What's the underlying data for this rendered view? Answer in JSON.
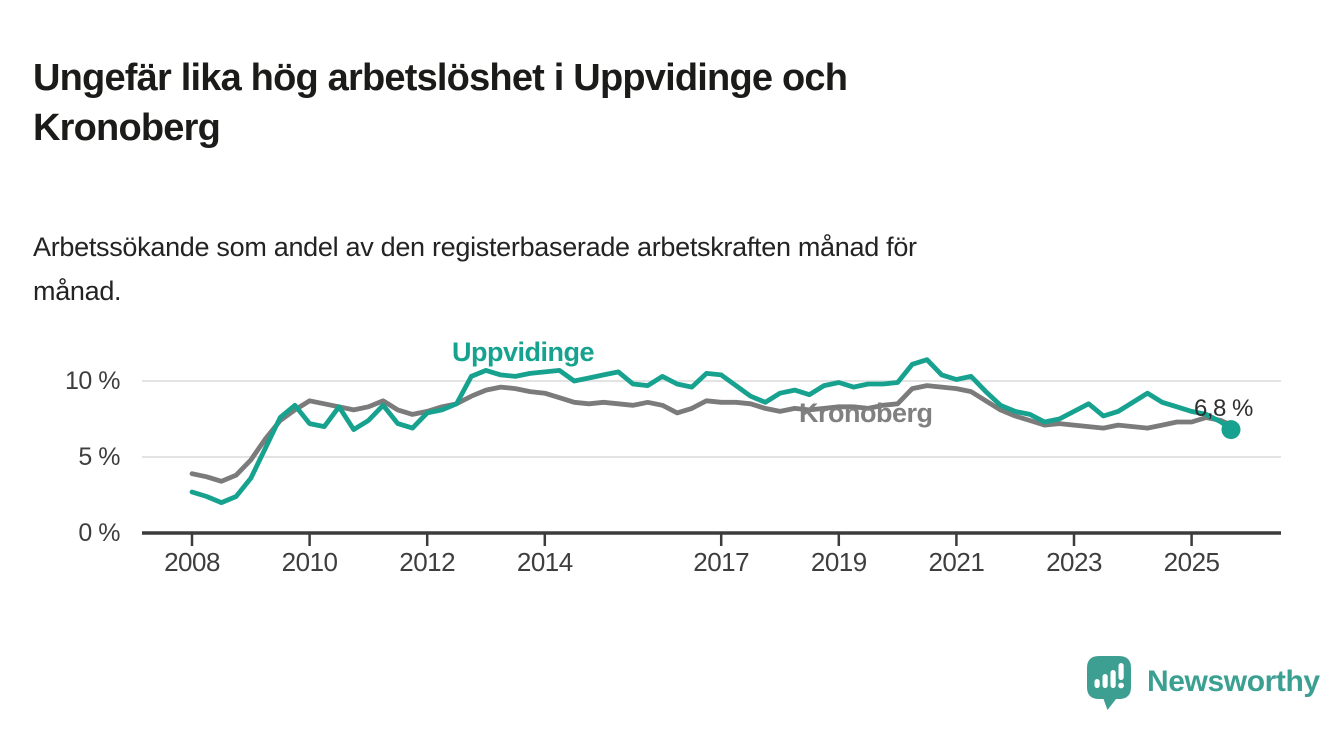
{
  "header": {
    "title": "Ungefär lika hög arbetslöshet i Uppvidinge och Kronoberg",
    "title_lines": [
      "Ungefär lika hög arbetslöshet i Uppvidinge och",
      "Kronoberg"
    ],
    "subtitle": "Arbetssökande som andel av den registerbaserade arbetskraften månad för månad.",
    "subtitle_lines": [
      "Arbetssökande som andel av den registerbaserade arbetskraften månad för",
      "månad."
    ]
  },
  "chart_data": {
    "type": "line",
    "unit": "%",
    "xlabel": "",
    "ylabel": "",
    "xlim": [
      2007.6,
      2026.2
    ],
    "ylim": [
      0,
      12.6
    ],
    "grid": "horizontal-y",
    "legend": "inline-labels",
    "x_ticks": [
      2008,
      2010,
      2012,
      2014,
      2017,
      2019,
      2021,
      2023,
      2025
    ],
    "y_ticks": [
      {
        "value": 10,
        "label": "10 %"
      },
      {
        "value": 5,
        "label": "5 %"
      },
      {
        "value": 0,
        "label": "0 %"
      }
    ],
    "x": [
      2008,
      2008.25,
      2008.5,
      2008.75,
      2009,
      2009.25,
      2009.5,
      2009.75,
      2010,
      2010.25,
      2010.5,
      2010.75,
      2011,
      2011.25,
      2011.5,
      2011.75,
      2012,
      2012.25,
      2012.5,
      2012.75,
      2013,
      2013.25,
      2013.5,
      2013.75,
      2014,
      2014.25,
      2014.5,
      2014.75,
      2015,
      2015.25,
      2015.5,
      2015.75,
      2016,
      2016.25,
      2016.5,
      2016.75,
      2017,
      2017.25,
      2017.5,
      2017.75,
      2018,
      2018.25,
      2018.5,
      2018.75,
      2019,
      2019.25,
      2019.5,
      2019.75,
      2020,
      2020.25,
      2020.5,
      2020.75,
      2021,
      2021.25,
      2021.5,
      2021.75,
      2022,
      2022.25,
      2022.5,
      2022.75,
      2023,
      2023.25,
      2023.5,
      2023.75,
      2024,
      2024.25,
      2024.5,
      2024.75,
      2025,
      2025.25,
      2025.5,
      2025.67
    ],
    "series": [
      {
        "name": "Uppvidinge",
        "color": "#17A28F",
        "values": [
          2.7,
          2.4,
          2.0,
          2.4,
          3.6,
          5.6,
          7.6,
          8.4,
          7.2,
          7.0,
          8.3,
          6.8,
          7.4,
          8.4,
          7.2,
          6.9,
          7.9,
          8.1,
          8.5,
          10.3,
          10.7,
          10.4,
          10.3,
          10.5,
          10.6,
          10.7,
          10.0,
          10.2,
          10.4,
          10.6,
          9.8,
          9.7,
          10.3,
          9.8,
          9.6,
          10.5,
          10.4,
          9.7,
          9.0,
          8.6,
          9.2,
          9.4,
          9.1,
          9.7,
          9.9,
          9.6,
          9.8,
          9.8,
          9.9,
          11.1,
          11.4,
          10.4,
          10.1,
          10.3,
          9.3,
          8.4,
          8.0,
          7.8,
          7.3,
          7.5,
          8.0,
          8.5,
          7.7,
          8.0,
          8.6,
          9.2,
          8.6,
          8.3,
          8.0,
          7.8,
          7.3,
          6.8
        ]
      },
      {
        "name": "Kronoberg",
        "color": "#7B7B7B",
        "label_color": "#808080",
        "values": [
          3.9,
          3.7,
          3.4,
          3.8,
          4.8,
          6.2,
          7.4,
          8.1,
          8.7,
          8.5,
          8.3,
          8.1,
          8.3,
          8.7,
          8.1,
          7.8,
          8.0,
          8.3,
          8.5,
          9.0,
          9.4,
          9.6,
          9.5,
          9.3,
          9.2,
          8.9,
          8.6,
          8.5,
          8.6,
          8.5,
          8.4,
          8.6,
          8.4,
          7.9,
          8.2,
          8.7,
          8.6,
          8.6,
          8.5,
          8.2,
          8.0,
          8.2,
          8.1,
          8.2,
          8.3,
          8.3,
          8.2,
          8.4,
          8.5,
          9.5,
          9.7,
          9.6,
          9.5,
          9.3,
          8.7,
          8.1,
          7.7,
          7.4,
          7.1,
          7.2,
          7.1,
          7.0,
          6.9,
          7.1,
          7.0,
          6.9,
          7.1,
          7.3,
          7.3,
          7.6,
          7.4,
          7.1
        ]
      }
    ],
    "end_point": {
      "series": "Uppvidinge",
      "x": 2025.67,
      "value": 6.8,
      "label": "6,8 %"
    },
    "colors": {
      "grid": "#E3E3E3",
      "axis": "#3C3C3C",
      "tick_text": "#3E3E3E"
    }
  },
  "footer": {
    "brand": "Newsworthy",
    "logo_color": "#3D9E92",
    "wordmark_color": "#3BA092"
  }
}
